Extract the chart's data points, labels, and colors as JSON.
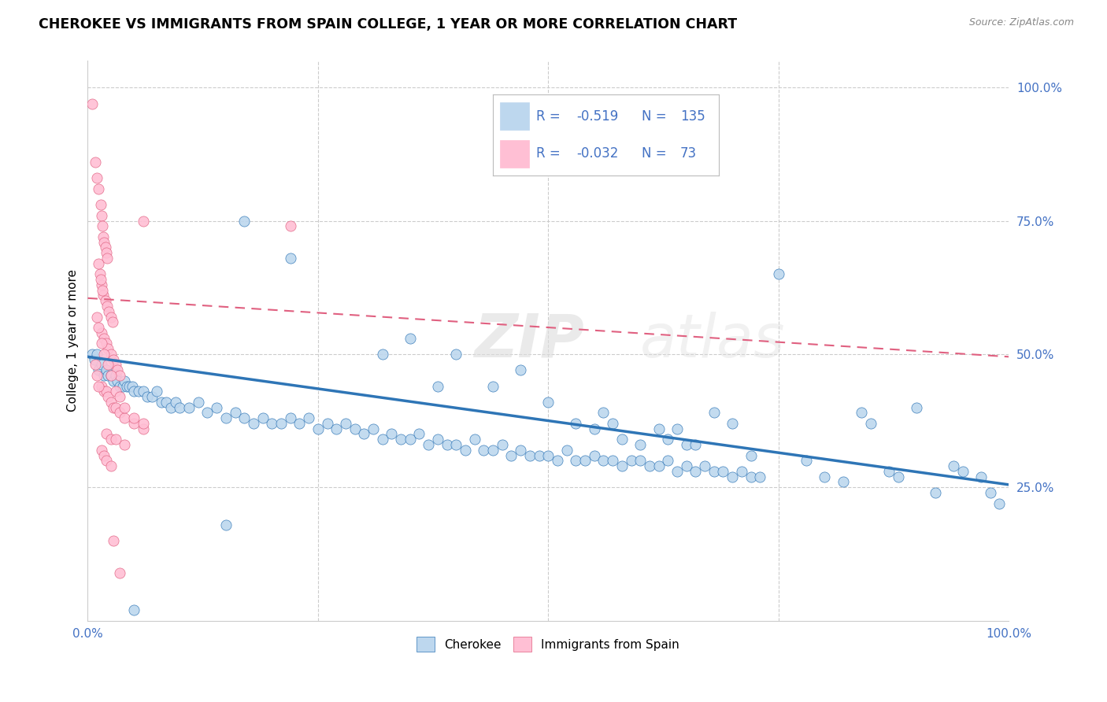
{
  "title": "CHEROKEE VS IMMIGRANTS FROM SPAIN COLLEGE, 1 YEAR OR MORE CORRELATION CHART",
  "source": "Source: ZipAtlas.com",
  "ylabel": "College, 1 year or more",
  "xlim": [
    0.0,
    1.0
  ],
  "ylim": [
    0.0,
    1.05
  ],
  "legend_R_blue": "-0.519",
  "legend_N_blue": "135",
  "legend_R_pink": "-0.032",
  "legend_N_pink": "73",
  "blue_color": "#BDD7EE",
  "pink_color": "#FFBFD4",
  "line_blue_color": "#2E75B6",
  "line_pink_color": "#E06080",
  "watermark": "ZIPatlas",
  "background_color": "#FFFFFF",
  "blue_scatter": [
    [
      0.005,
      0.5
    ],
    [
      0.007,
      0.49
    ],
    [
      0.01,
      0.5
    ],
    [
      0.012,
      0.47
    ],
    [
      0.015,
      0.48
    ],
    [
      0.018,
      0.46
    ],
    [
      0.02,
      0.47
    ],
    [
      0.022,
      0.46
    ],
    [
      0.025,
      0.46
    ],
    [
      0.028,
      0.45
    ],
    [
      0.03,
      0.46
    ],
    [
      0.032,
      0.45
    ],
    [
      0.035,
      0.44
    ],
    [
      0.038,
      0.44
    ],
    [
      0.04,
      0.45
    ],
    [
      0.042,
      0.44
    ],
    [
      0.045,
      0.44
    ],
    [
      0.048,
      0.44
    ],
    [
      0.05,
      0.43
    ],
    [
      0.055,
      0.43
    ],
    [
      0.06,
      0.43
    ],
    [
      0.065,
      0.42
    ],
    [
      0.07,
      0.42
    ],
    [
      0.075,
      0.43
    ],
    [
      0.08,
      0.41
    ],
    [
      0.085,
      0.41
    ],
    [
      0.09,
      0.4
    ],
    [
      0.095,
      0.41
    ],
    [
      0.1,
      0.4
    ],
    [
      0.11,
      0.4
    ],
    [
      0.12,
      0.41
    ],
    [
      0.13,
      0.39
    ],
    [
      0.14,
      0.4
    ],
    [
      0.15,
      0.38
    ],
    [
      0.16,
      0.39
    ],
    [
      0.17,
      0.38
    ],
    [
      0.18,
      0.37
    ],
    [
      0.19,
      0.38
    ],
    [
      0.2,
      0.37
    ],
    [
      0.21,
      0.37
    ],
    [
      0.22,
      0.38
    ],
    [
      0.23,
      0.37
    ],
    [
      0.24,
      0.38
    ],
    [
      0.25,
      0.36
    ],
    [
      0.26,
      0.37
    ],
    [
      0.27,
      0.36
    ],
    [
      0.28,
      0.37
    ],
    [
      0.29,
      0.36
    ],
    [
      0.3,
      0.35
    ],
    [
      0.31,
      0.36
    ],
    [
      0.32,
      0.34
    ],
    [
      0.33,
      0.35
    ],
    [
      0.34,
      0.34
    ],
    [
      0.35,
      0.34
    ],
    [
      0.36,
      0.35
    ],
    [
      0.37,
      0.33
    ],
    [
      0.38,
      0.34
    ],
    [
      0.39,
      0.33
    ],
    [
      0.4,
      0.33
    ],
    [
      0.41,
      0.32
    ],
    [
      0.42,
      0.34
    ],
    [
      0.43,
      0.32
    ],
    [
      0.44,
      0.32
    ],
    [
      0.45,
      0.33
    ],
    [
      0.46,
      0.31
    ],
    [
      0.47,
      0.32
    ],
    [
      0.48,
      0.31
    ],
    [
      0.49,
      0.31
    ],
    [
      0.5,
      0.31
    ],
    [
      0.51,
      0.3
    ],
    [
      0.52,
      0.32
    ],
    [
      0.53,
      0.3
    ],
    [
      0.54,
      0.3
    ],
    [
      0.55,
      0.31
    ],
    [
      0.56,
      0.3
    ],
    [
      0.57,
      0.3
    ],
    [
      0.58,
      0.29
    ],
    [
      0.59,
      0.3
    ],
    [
      0.6,
      0.3
    ],
    [
      0.61,
      0.29
    ],
    [
      0.62,
      0.29
    ],
    [
      0.63,
      0.3
    ],
    [
      0.64,
      0.28
    ],
    [
      0.65,
      0.29
    ],
    [
      0.66,
      0.28
    ],
    [
      0.67,
      0.29
    ],
    [
      0.68,
      0.28
    ],
    [
      0.69,
      0.28
    ],
    [
      0.7,
      0.27
    ],
    [
      0.71,
      0.28
    ],
    [
      0.72,
      0.27
    ],
    [
      0.73,
      0.27
    ],
    [
      0.75,
      0.65
    ],
    [
      0.78,
      0.3
    ],
    [
      0.8,
      0.27
    ],
    [
      0.82,
      0.26
    ],
    [
      0.84,
      0.39
    ],
    [
      0.85,
      0.37
    ],
    [
      0.87,
      0.28
    ],
    [
      0.88,
      0.27
    ],
    [
      0.9,
      0.4
    ],
    [
      0.92,
      0.24
    ],
    [
      0.94,
      0.29
    ],
    [
      0.95,
      0.28
    ],
    [
      0.97,
      0.27
    ],
    [
      0.98,
      0.24
    ],
    [
      0.99,
      0.22
    ],
    [
      0.17,
      0.75
    ],
    [
      0.22,
      0.68
    ],
    [
      0.32,
      0.5
    ],
    [
      0.35,
      0.53
    ],
    [
      0.4,
      0.5
    ],
    [
      0.38,
      0.44
    ],
    [
      0.44,
      0.44
    ],
    [
      0.47,
      0.47
    ],
    [
      0.5,
      0.41
    ],
    [
      0.53,
      0.37
    ],
    [
      0.55,
      0.36
    ],
    [
      0.56,
      0.39
    ],
    [
      0.57,
      0.37
    ],
    [
      0.58,
      0.34
    ],
    [
      0.6,
      0.33
    ],
    [
      0.62,
      0.36
    ],
    [
      0.63,
      0.34
    ],
    [
      0.64,
      0.36
    ],
    [
      0.65,
      0.33
    ],
    [
      0.66,
      0.33
    ],
    [
      0.68,
      0.39
    ],
    [
      0.7,
      0.37
    ],
    [
      0.72,
      0.31
    ],
    [
      0.05,
      0.02
    ],
    [
      0.15,
      0.18
    ]
  ],
  "pink_scatter": [
    [
      0.005,
      0.97
    ],
    [
      0.008,
      0.86
    ],
    [
      0.01,
      0.83
    ],
    [
      0.012,
      0.81
    ],
    [
      0.014,
      0.78
    ],
    [
      0.015,
      0.76
    ],
    [
      0.016,
      0.74
    ],
    [
      0.017,
      0.72
    ],
    [
      0.018,
      0.71
    ],
    [
      0.019,
      0.7
    ],
    [
      0.02,
      0.69
    ],
    [
      0.021,
      0.68
    ],
    [
      0.013,
      0.65
    ],
    [
      0.015,
      0.63
    ],
    [
      0.017,
      0.61
    ],
    [
      0.019,
      0.6
    ],
    [
      0.021,
      0.59
    ],
    [
      0.023,
      0.58
    ],
    [
      0.025,
      0.57
    ],
    [
      0.027,
      0.56
    ],
    [
      0.015,
      0.54
    ],
    [
      0.018,
      0.53
    ],
    [
      0.02,
      0.52
    ],
    [
      0.022,
      0.51
    ],
    [
      0.025,
      0.5
    ],
    [
      0.028,
      0.49
    ],
    [
      0.03,
      0.48
    ],
    [
      0.032,
      0.47
    ],
    [
      0.035,
      0.46
    ],
    [
      0.015,
      0.44
    ],
    [
      0.018,
      0.43
    ],
    [
      0.02,
      0.43
    ],
    [
      0.022,
      0.42
    ],
    [
      0.025,
      0.41
    ],
    [
      0.028,
      0.4
    ],
    [
      0.03,
      0.4
    ],
    [
      0.035,
      0.39
    ],
    [
      0.04,
      0.38
    ],
    [
      0.05,
      0.37
    ],
    [
      0.06,
      0.36
    ],
    [
      0.02,
      0.35
    ],
    [
      0.025,
      0.34
    ],
    [
      0.03,
      0.34
    ],
    [
      0.04,
      0.33
    ],
    [
      0.015,
      0.32
    ],
    [
      0.018,
      0.31
    ],
    [
      0.02,
      0.3
    ],
    [
      0.025,
      0.29
    ],
    [
      0.06,
      0.75
    ],
    [
      0.22,
      0.74
    ],
    [
      0.01,
      0.57
    ],
    [
      0.012,
      0.55
    ],
    [
      0.028,
      0.15
    ],
    [
      0.035,
      0.09
    ],
    [
      0.008,
      0.48
    ],
    [
      0.01,
      0.46
    ],
    [
      0.012,
      0.44
    ],
    [
      0.015,
      0.52
    ],
    [
      0.018,
      0.5
    ],
    [
      0.022,
      0.48
    ],
    [
      0.025,
      0.46
    ],
    [
      0.03,
      0.43
    ],
    [
      0.035,
      0.42
    ],
    [
      0.04,
      0.4
    ],
    [
      0.05,
      0.38
    ],
    [
      0.06,
      0.37
    ],
    [
      0.012,
      0.67
    ],
    [
      0.014,
      0.64
    ],
    [
      0.016,
      0.62
    ]
  ]
}
